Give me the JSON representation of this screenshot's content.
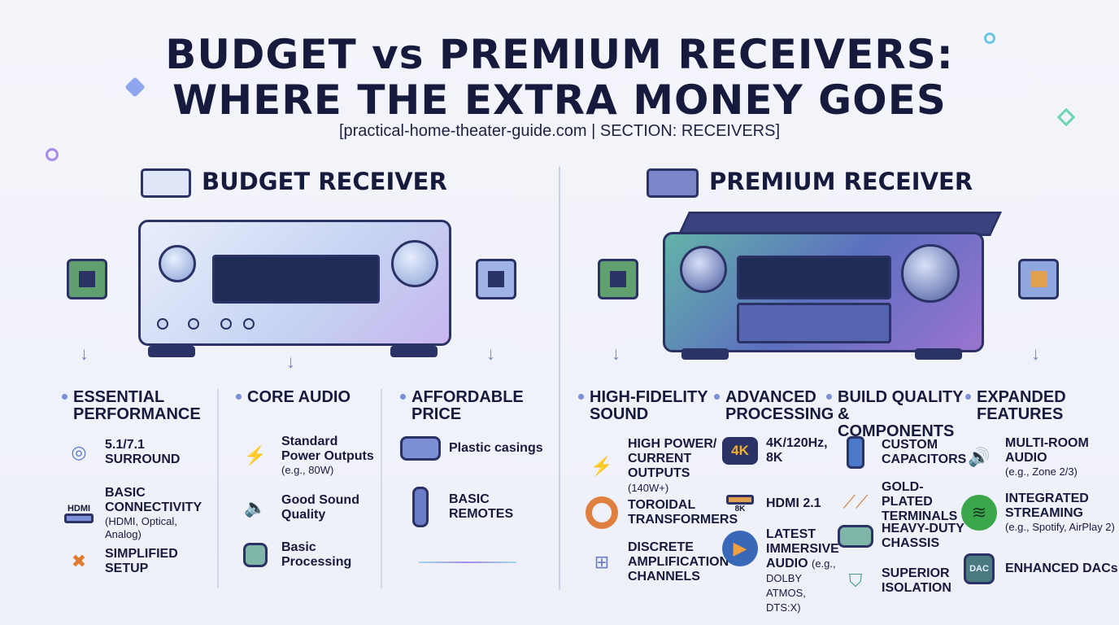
{
  "title": {
    "line1": "BUDGET vs PREMIUM RECEIVERS:",
    "line2": "WHERE THE EXTRA MONEY GOES",
    "source": "[practical-home-theater-guide.com | SECTION: RECEIVERS]"
  },
  "colors": {
    "ink": "#161b3d",
    "accent": "#7d8fd6",
    "budget_body": "#c9d6f4",
    "premium_body": "#5c6fc0"
  },
  "budget": {
    "heading": "BUDGET RECEIVER",
    "columns": [
      {
        "title": "ESSENTIAL PERFORMANCE",
        "items": [
          {
            "icon": "surround-speakers-icon",
            "label": "5.1/7.1 SURROUND",
            "note": ""
          },
          {
            "icon": "hdmi-icon",
            "icon_text": "HDMI",
            "label": "BASIC CONNECTIVITY",
            "note": "(HDMI, Optical, Analog)"
          },
          {
            "icon": "tools-icon",
            "label": "SIMPLIFIED SETUP",
            "note": ""
          }
        ]
      },
      {
        "title": "CORE AUDIO",
        "items": [
          {
            "icon": "power-gauge-icon",
            "label": "Standard Power Outputs",
            "note": "(e.g., 80W)"
          },
          {
            "icon": "speaker-icon",
            "label": "Good Sound Quality",
            "note": ""
          },
          {
            "icon": "processor-chip-icon",
            "label": "Basic Processing",
            "note": ""
          }
        ]
      },
      {
        "title": "AFFORDABLE PRICE",
        "items": [
          {
            "icon": "plastic-case-icon",
            "label": "Plastic casings",
            "note": ""
          },
          {
            "icon": "remote-icon",
            "label": "BASIC REMOTES",
            "note": ""
          }
        ]
      }
    ]
  },
  "premium": {
    "heading": "PREMIUM RECEIVER",
    "columns": [
      {
        "title": "HIGH-FIDELITY SOUND",
        "items": [
          {
            "icon": "power-gauge-icon",
            "label": "HIGH POWER/ CURRENT OUTPUTS",
            "note": "(140W+)"
          },
          {
            "icon": "toroidal-transformer-icon",
            "label": "TOROIDAL TRANSFORMERS",
            "note": ""
          },
          {
            "icon": "amplifier-channels-icon",
            "label": "DISCRETE AMPLIFICATION CHANNELS",
            "note": ""
          }
        ]
      },
      {
        "title": "ADVANCED PROCESSING",
        "items": [
          {
            "icon": "4k-monitor-icon",
            "icon_text": "4K",
            "label": "4K/120Hz, 8K",
            "note": ""
          },
          {
            "icon": "hdmi-icon",
            "icon_text": "8K",
            "label": "HDMI 2.1",
            "note": ""
          },
          {
            "icon": "play-icon",
            "label": "LATEST IMMERSIVE AUDIO",
            "note": "(e.g., DOLBY ATMOS, DTS:X)"
          }
        ]
      },
      {
        "title": "BUILD QUALITY & COMPONENTS",
        "items": [
          {
            "icon": "capacitor-icon",
            "label": "CUSTOM CAPACITORS",
            "note": ""
          },
          {
            "icon": "terminals-icon",
            "label": "GOLD-PLATED TERMINALS",
            "note": ""
          },
          {
            "icon": "chassis-icon",
            "label": "HEAVY-DUTY CHASSIS",
            "note": ""
          },
          {
            "icon": "shield-icon",
            "label": "SUPERIOR ISOLATION",
            "note": ""
          }
        ]
      },
      {
        "title": "EXPANDED FEATURES",
        "items": [
          {
            "icon": "multi-room-speaker-icon",
            "label": "MULTI-ROOM AUDIO",
            "note": "(e.g., Zone 2/3)"
          },
          {
            "icon": "streaming-icon",
            "label": "INTEGRATED STREAMING",
            "note": "(e.g., Spotify, AirPlay 2)"
          },
          {
            "icon": "dac-chip-icon",
            "icon_text": "DAC",
            "label": "ENHANCED DACs",
            "note": ""
          }
        ]
      }
    ]
  }
}
